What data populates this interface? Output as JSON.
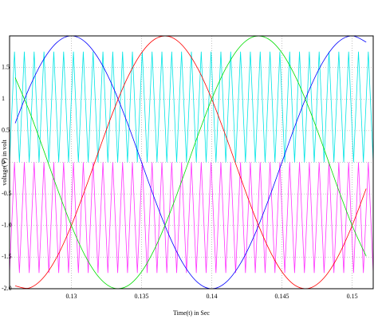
{
  "chart_data": {
    "type": "line",
    "x_label": "Time(t) in Sec",
    "y_label": "voltage(V) in volt",
    "xlim": [
      0.1256,
      0.1515
    ],
    "ylim": [
      -2,
      2
    ],
    "xticks": [
      0.13,
      0.135,
      0.14,
      0.145,
      0.15
    ],
    "yticks": [
      1.5,
      1,
      0.5,
      0,
      -0.5,
      {
        "value": -1,
        "label": "-1.0"
      },
      -1.5,
      {
        "value": -2,
        "label": "-2.0"
      }
    ],
    "grid": true,
    "series": [
      {
        "color": "#00e5e5",
        "x": [
          0.1256,
          0.12595,
          0.1263,
          0.12665,
          0.127,
          0.12735,
          0.1277,
          0.12805,
          0.1284,
          0.12875,
          0.1291,
          0.12945,
          0.1298,
          0.13015,
          0.1305,
          0.13085,
          0.1312,
          0.13155,
          0.1319,
          0.13225,
          0.1326,
          0.13295,
          0.1333,
          0.13365,
          0.134,
          0.13435,
          0.1347,
          0.13505,
          0.1354,
          0.13575,
          0.1361,
          0.13645,
          0.1368,
          0.13715,
          0.1375,
          0.13785,
          0.1382,
          0.13855,
          0.1389,
          0.13925,
          0.1396,
          0.13995,
          0.1403,
          0.14065,
          0.141,
          0.14135,
          0.1417,
          0.14205,
          0.1424,
          0.14275,
          0.1431,
          0.14345,
          0.1438,
          0.14415,
          0.1445,
          0.14485,
          0.1452,
          0.14555,
          0.1459,
          0.14625,
          0.1466,
          0.14695,
          0.1473,
          0.14765,
          0.148,
          0.14835,
          0.1487,
          0.14905,
          0.1494,
          0.14975,
          0.1501,
          0.15045,
          0.1508,
          0.15115,
          0.1515
        ],
        "values": [
          0,
          1.75,
          0,
          1.75,
          0,
          1.75,
          0,
          1.75,
          0,
          1.75,
          0,
          1.75,
          0,
          1.75,
          0,
          1.75,
          0,
          1.75,
          0,
          1.75,
          0,
          1.75,
          0,
          1.75,
          0,
          1.75,
          0,
          1.75,
          0,
          1.75,
          0,
          1.75,
          0,
          1.75,
          0,
          1.75,
          0,
          1.75,
          0,
          1.75,
          0,
          1.75,
          0,
          1.75,
          0,
          1.75,
          0,
          1.75,
          0,
          1.75,
          0,
          1.75,
          0,
          1.75,
          0,
          1.75,
          0,
          1.75,
          0,
          1.75,
          0,
          1.75,
          0,
          1.75,
          0,
          1.75,
          0,
          1.75,
          0,
          1.75,
          0,
          1.75,
          0,
          1.75,
          0
        ]
      },
      {
        "color": "#ff33ff",
        "x": [
          0.1256,
          0.12595,
          0.1263,
          0.12665,
          0.127,
          0.12735,
          0.1277,
          0.12805,
          0.1284,
          0.12875,
          0.1291,
          0.12945,
          0.1298,
          0.13015,
          0.1305,
          0.13085,
          0.1312,
          0.13155,
          0.1319,
          0.13225,
          0.1326,
          0.13295,
          0.1333,
          0.13365,
          0.134,
          0.13435,
          0.1347,
          0.13505,
          0.1354,
          0.13575,
          0.1361,
          0.13645,
          0.1368,
          0.13715,
          0.1375,
          0.13785,
          0.1382,
          0.13855,
          0.1389,
          0.13925,
          0.1396,
          0.13995,
          0.1403,
          0.14065,
          0.141,
          0.14135,
          0.1417,
          0.14205,
          0.1424,
          0.14275,
          0.1431,
          0.14345,
          0.1438,
          0.14415,
          0.1445,
          0.14485,
          0.1452,
          0.14555,
          0.1459,
          0.14625,
          0.1466,
          0.14695,
          0.1473,
          0.14765,
          0.148,
          0.14835,
          0.1487,
          0.14905,
          0.1494,
          0.14975,
          0.1501,
          0.15045,
          0.1508,
          0.15115,
          0.1515
        ],
        "values": [
          -1.75,
          0,
          -1.75,
          0,
          -1.75,
          0,
          -1.75,
          0,
          -1.75,
          0,
          -1.75,
          0,
          -1.75,
          0,
          -1.75,
          0,
          -1.75,
          0,
          -1.75,
          0,
          -1.75,
          0,
          -1.75,
          0,
          -1.75,
          0,
          -1.75,
          0,
          -1.75,
          0,
          -1.75,
          0,
          -1.75,
          0,
          -1.75,
          0,
          -1.75,
          0,
          -1.75,
          0,
          -1.75,
          0,
          -1.75,
          0,
          -1.75,
          0,
          -1.75,
          0,
          -1.75,
          0,
          -1.75,
          0,
          -1.75,
          0,
          -1.75,
          0,
          -1.75,
          0,
          -1.75,
          0,
          -1.75,
          0,
          -1.75,
          0,
          -1.75,
          0,
          -1.75,
          0,
          -1.75,
          0,
          -1.75,
          0,
          -1.75,
          0,
          -1.75
        ]
      },
      {
        "color": "#0000ff",
        "smooth": true,
        "x": [
          0.126,
          0.127,
          0.128,
          0.129,
          0.13,
          0.131,
          0.132,
          0.133,
          0.134,
          0.135,
          0.136,
          0.137,
          0.138,
          0.139,
          0.14,
          0.141,
          0.142,
          0.143,
          0.144,
          0.145,
          0.146,
          0.147,
          0.148,
          0.149,
          0.15,
          0.151
        ],
        "values": [
          0.618,
          1.176,
          1.618,
          1.902,
          2,
          1.902,
          1.618,
          1.176,
          0.618,
          0,
          -0.618,
          -1.176,
          -1.618,
          -1.902,
          -2,
          -1.902,
          -1.618,
          -1.176,
          -0.618,
          0,
          0.618,
          1.176,
          1.618,
          1.902,
          2,
          1.902
        ]
      },
      {
        "color": "#ff0000",
        "smooth": true,
        "x": [
          0.126,
          0.127,
          0.128,
          0.129,
          0.13,
          0.131,
          0.132,
          0.133,
          0.134,
          0.135,
          0.136,
          0.137,
          0.138,
          0.139,
          0.14,
          0.141,
          0.142,
          0.143,
          0.144,
          0.145,
          0.146,
          0.147,
          0.148,
          0.149,
          0.15,
          0.151
        ],
        "values": [
          -1.956,
          -1.989,
          -1.827,
          -1.486,
          -1,
          -0.416,
          0.209,
          0.813,
          1.338,
          1.732,
          1.956,
          1.989,
          1.827,
          1.486,
          1,
          0.416,
          -0.209,
          -0.813,
          -1.338,
          -1.732,
          -1.956,
          -1.989,
          -1.827,
          -1.486,
          -1,
          -0.416
        ]
      },
      {
        "color": "#00dd00",
        "smooth": true,
        "x": [
          0.126,
          0.127,
          0.128,
          0.129,
          0.13,
          0.131,
          0.132,
          0.133,
          0.134,
          0.135,
          0.136,
          0.137,
          0.138,
          0.139,
          0.14,
          0.141,
          0.142,
          0.143,
          0.144,
          0.145,
          0.146,
          0.147,
          0.148,
          0.149,
          0.15,
          0.151
        ],
        "values": [
          1.338,
          0.813,
          0.209,
          -0.416,
          -1,
          -1.486,
          -1.827,
          -1.989,
          -1.956,
          -1.732,
          -1.338,
          -0.813,
          -0.209,
          0.416,
          1,
          1.486,
          1.827,
          1.989,
          1.956,
          1.732,
          1.338,
          0.813,
          0.209,
          -0.416,
          -1,
          -1.486
        ]
      }
    ]
  }
}
